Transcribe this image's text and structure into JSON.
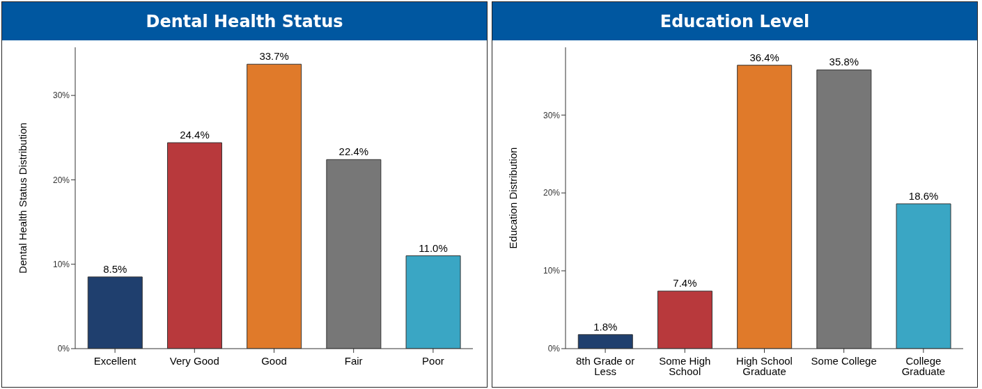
{
  "chart_data": [
    {
      "type": "bar",
      "title": "Dental Health Status",
      "ylabel": "Dental Health Status Distribution",
      "categories": [
        "Excellent",
        "Very Good",
        "Good",
        "Fair",
        "Poor"
      ],
      "values": [
        8.5,
        24.4,
        33.7,
        22.4,
        11.0
      ],
      "colors": [
        "#1f3f6e",
        "#b8393c",
        "#e07a2a",
        "#777777",
        "#3aa6c4"
      ],
      "value_labels": [
        "8.5%",
        "24.4%",
        "33.7%",
        "22.4%",
        "11.0%"
      ],
      "ylim": [
        0,
        35.7
      ],
      "yticks": [
        {
          "value": 0,
          "label": "0%"
        },
        {
          "value": 10,
          "label": "10%"
        },
        {
          "value": 20,
          "label": "20%"
        },
        {
          "value": 30,
          "label": "30%"
        }
      ],
      "grid": false,
      "legend": false
    },
    {
      "type": "bar",
      "title": "Education Level",
      "ylabel": "Education Distribution",
      "categories": [
        "8th Grade or Less",
        "Some High School",
        "High School Graduate",
        "Some College",
        "College Graduate"
      ],
      "values": [
        1.8,
        7.4,
        36.4,
        35.8,
        18.6
      ],
      "colors": [
        "#1f3f6e",
        "#b8393c",
        "#e07a2a",
        "#777777",
        "#3aa6c4"
      ],
      "value_labels": [
        "1.8%",
        "7.4%",
        "36.4%",
        "35.8%",
        "18.6%"
      ],
      "ylim": [
        0,
        38.7
      ],
      "yticks": [
        {
          "value": 0,
          "label": "0%"
        },
        {
          "value": 10,
          "label": "10%"
        },
        {
          "value": 20,
          "label": "20%"
        },
        {
          "value": 30,
          "label": "30%"
        }
      ],
      "grid": false,
      "legend": false
    }
  ]
}
